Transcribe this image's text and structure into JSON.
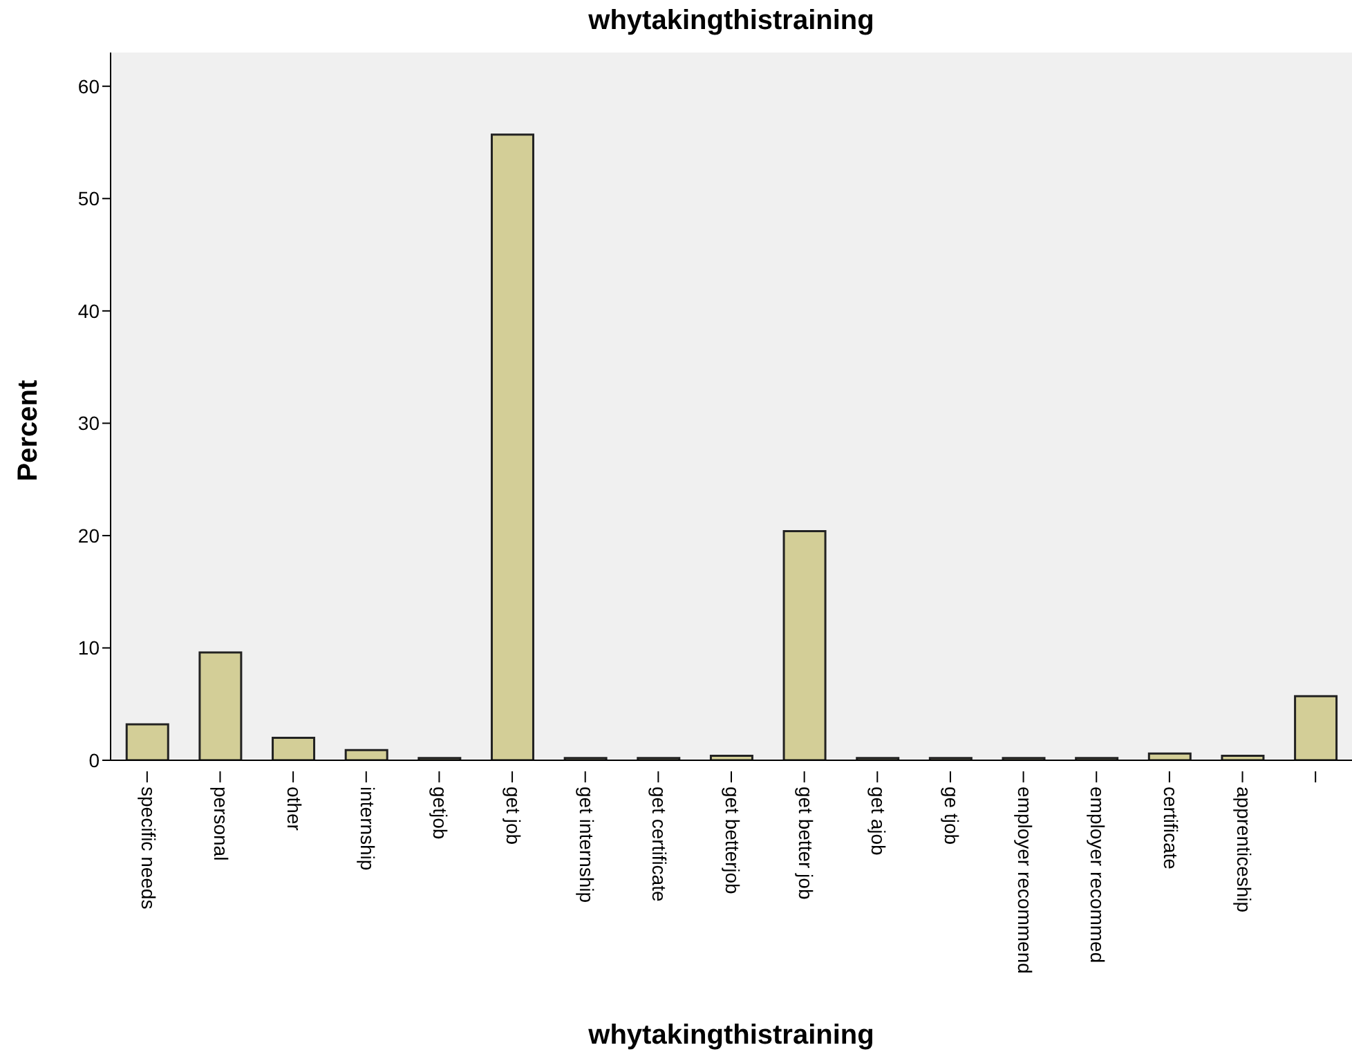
{
  "chart_data": {
    "type": "bar",
    "title": "whytakingthistraining",
    "xlabel": "whytakingthistraining",
    "ylabel": "Percent",
    "categories": [
      "specific needs",
      "personal",
      "other",
      "internship",
      "getjob",
      "get job",
      "get internship",
      "get certificate",
      "get betterjob",
      "get better job",
      "get ajob",
      "ge tjob",
      "employer recommend",
      "employer recommed",
      "certificate",
      "apprenticeship",
      null
    ],
    "values": [
      3.2,
      9.6,
      2.0,
      0.9,
      0.2,
      55.7,
      0.2,
      0.2,
      0.4,
      20.4,
      0.2,
      0.2,
      0.2,
      0.2,
      0.6,
      0.4,
      5.7
    ],
    "color": "#d3ce97",
    "ylim": [
      0,
      63
    ],
    "yticks": [
      0,
      10,
      20,
      30,
      40,
      50,
      60
    ],
    "grid": false
  }
}
